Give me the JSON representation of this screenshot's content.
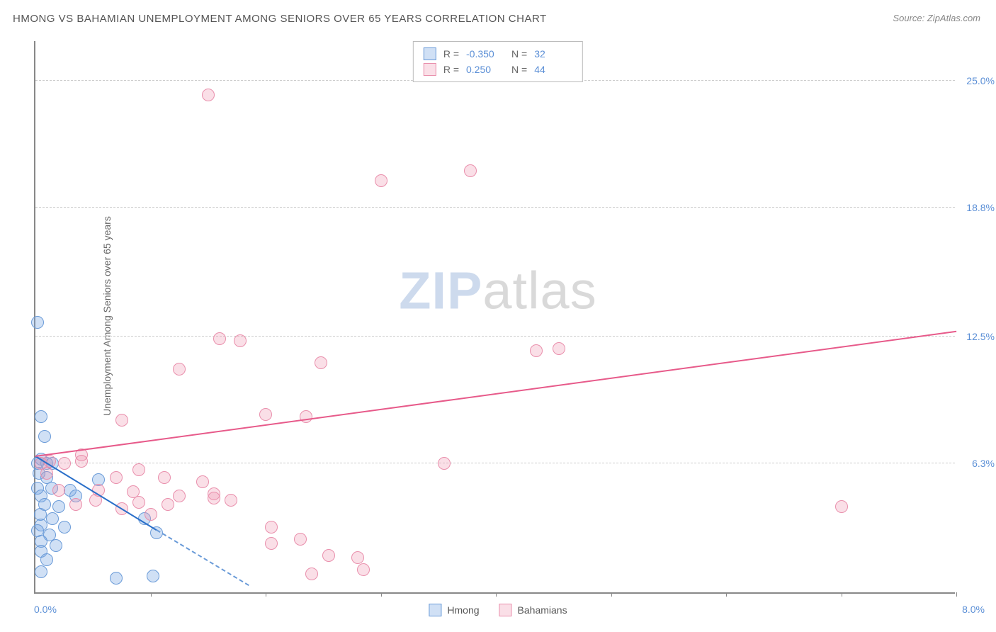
{
  "title": "HMONG VS BAHAMIAN UNEMPLOYMENT AMONG SENIORS OVER 65 YEARS CORRELATION CHART",
  "source_label": "Source: ZipAtlas.com",
  "y_axis_label": "Unemployment Among Seniors over 65 years",
  "watermark": {
    "part1": "ZIP",
    "part2": "atlas"
  },
  "chart": {
    "type": "scatter",
    "xlim": [
      0,
      8.0
    ],
    "ylim": [
      0,
      27.0
    ],
    "x_origin_label": "0.0%",
    "x_max_label": "8.0%",
    "x_tick_positions": [
      1,
      2,
      3,
      4,
      5,
      6,
      7,
      8
    ],
    "y_gridlines": [
      {
        "value": 6.3,
        "label": "6.3%"
      },
      {
        "value": 12.5,
        "label": "12.5%"
      },
      {
        "value": 18.8,
        "label": "18.8%"
      },
      {
        "value": 25.0,
        "label": "25.0%"
      }
    ],
    "background_color": "#ffffff",
    "grid_color": "#cccccc",
    "axis_color": "#888888",
    "point_radius": 9,
    "point_border_width": 1.5,
    "series": [
      {
        "name": "Hmong",
        "fill_color": "rgba(120,165,225,0.35)",
        "stroke_color": "#6a9bd8",
        "trend_color": "#2a6fc9",
        "trend": {
          "x1": 0,
          "y1": 6.6,
          "x2": 1.05,
          "y2": 3.0,
          "dash_extend_x": 1.85,
          "dash_extend_y": 0.3
        },
        "points": [
          [
            0.02,
            13.2
          ],
          [
            0.05,
            8.6
          ],
          [
            0.08,
            7.6
          ],
          [
            0.05,
            6.5
          ],
          [
            0.02,
            6.3
          ],
          [
            0.1,
            6.3
          ],
          [
            0.15,
            6.3
          ],
          [
            0.03,
            5.8
          ],
          [
            0.1,
            5.6
          ],
          [
            0.55,
            5.5
          ],
          [
            0.02,
            5.1
          ],
          [
            0.14,
            5.1
          ],
          [
            0.3,
            5.0
          ],
          [
            0.05,
            4.7
          ],
          [
            0.35,
            4.7
          ],
          [
            0.08,
            4.3
          ],
          [
            0.2,
            4.2
          ],
          [
            0.04,
            3.8
          ],
          [
            0.15,
            3.6
          ],
          [
            0.95,
            3.6
          ],
          [
            0.05,
            3.3
          ],
          [
            0.25,
            3.2
          ],
          [
            0.02,
            3.0
          ],
          [
            0.12,
            2.8
          ],
          [
            0.05,
            2.5
          ],
          [
            0.18,
            2.3
          ],
          [
            1.05,
            2.9
          ],
          [
            0.05,
            2.0
          ],
          [
            0.1,
            1.6
          ],
          [
            0.7,
            0.7
          ],
          [
            0.05,
            1.0
          ],
          [
            1.02,
            0.8
          ]
        ]
      },
      {
        "name": "Bahamians",
        "fill_color": "rgba(240,150,175,0.30)",
        "stroke_color": "#e98fac",
        "trend_color": "#e75a8a",
        "trend": {
          "x1": 0,
          "y1": 6.6,
          "x2": 8.0,
          "y2": 12.7
        },
        "points": [
          [
            1.5,
            24.3
          ],
          [
            3.0,
            20.1
          ],
          [
            3.78,
            20.6
          ],
          [
            1.6,
            12.4
          ],
          [
            1.78,
            12.3
          ],
          [
            1.25,
            10.9
          ],
          [
            2.48,
            11.2
          ],
          [
            4.35,
            11.8
          ],
          [
            4.55,
            11.9
          ],
          [
            0.75,
            8.4
          ],
          [
            2.0,
            8.7
          ],
          [
            2.35,
            8.6
          ],
          [
            0.05,
            6.3
          ],
          [
            0.12,
            6.4
          ],
          [
            0.25,
            6.3
          ],
          [
            0.4,
            6.4
          ],
          [
            3.55,
            6.3
          ],
          [
            0.7,
            5.6
          ],
          [
            0.9,
            6.0
          ],
          [
            1.12,
            5.6
          ],
          [
            1.45,
            5.4
          ],
          [
            0.2,
            5.0
          ],
          [
            0.55,
            5.0
          ],
          [
            0.85,
            4.9
          ],
          [
            1.55,
            4.8
          ],
          [
            1.25,
            4.7
          ],
          [
            0.35,
            4.3
          ],
          [
            0.9,
            4.4
          ],
          [
            1.15,
            4.3
          ],
          [
            1.55,
            4.6
          ],
          [
            1.7,
            4.5
          ],
          [
            1.0,
            3.8
          ],
          [
            2.05,
            3.2
          ],
          [
            7.0,
            4.2
          ],
          [
            2.3,
            2.6
          ],
          [
            2.05,
            2.4
          ],
          [
            2.55,
            1.8
          ],
          [
            2.8,
            1.7
          ],
          [
            2.85,
            1.1
          ],
          [
            2.4,
            0.9
          ],
          [
            0.4,
            6.7
          ],
          [
            0.1,
            5.8
          ],
          [
            0.52,
            4.5
          ],
          [
            0.75,
            4.1
          ]
        ]
      }
    ]
  },
  "legend_top": {
    "rows": [
      {
        "swatch_fill": "rgba(120,165,225,0.35)",
        "swatch_stroke": "#6a9bd8",
        "r_label": "R =",
        "r_value": "-0.350",
        "n_label": "N =",
        "n_value": "32"
      },
      {
        "swatch_fill": "rgba(240,150,175,0.30)",
        "swatch_stroke": "#e98fac",
        "r_label": "R =",
        "r_value": "0.250",
        "n_label": "N =",
        "n_value": "44"
      }
    ]
  },
  "legend_bottom": {
    "items": [
      {
        "swatch_fill": "rgba(120,165,225,0.35)",
        "swatch_stroke": "#6a9bd8",
        "label": "Hmong"
      },
      {
        "swatch_fill": "rgba(240,150,175,0.30)",
        "swatch_stroke": "#e98fac",
        "label": "Bahamians"
      }
    ]
  }
}
